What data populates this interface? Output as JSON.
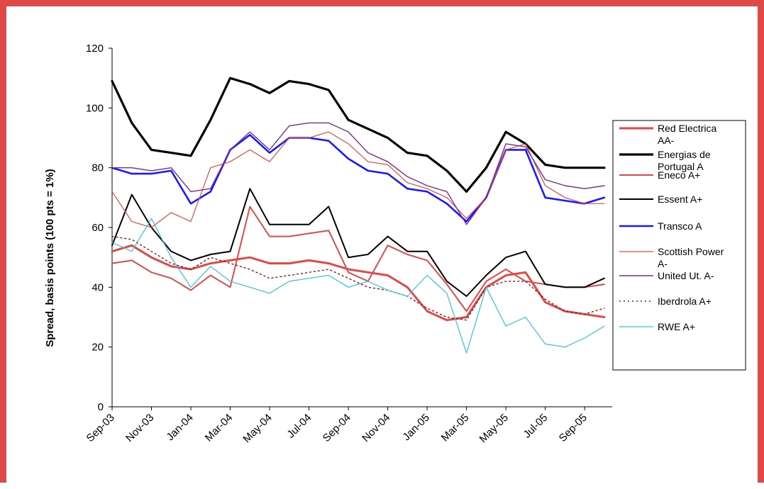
{
  "chart_data": {
    "type": "line",
    "title": "",
    "xlabel": "",
    "ylabel": "Spread, basis points (100 pts = 1%)",
    "ylim": [
      0,
      120
    ],
    "yticks": [
      0,
      20,
      40,
      60,
      80,
      100,
      120
    ],
    "xticks": [
      "Sep-03",
      "Nov-03",
      "Jan-04",
      "Mar-04",
      "May-04",
      "Jul-04",
      "Sep-04",
      "Nov-04",
      "Jan-05",
      "Mar-05",
      "May-05",
      "Jul-05",
      "Sep-05"
    ],
    "x_range": [
      "Sep-03",
      "Oct-05"
    ],
    "grid": false,
    "legend": "right",
    "series": [
      {
        "name": "Red Electrica AA-",
        "color": "#e04a46",
        "width": 3,
        "dash": "",
        "x": [
          "Sep-03",
          "Oct-03",
          "Nov-03",
          "Dec-03",
          "Jan-04",
          "Feb-04",
          "Mar-04",
          "Apr-04",
          "May-04",
          "Jun-04",
          "Jul-04",
          "Aug-04",
          "Sep-04",
          "Oct-04",
          "Nov-04",
          "Dec-04",
          "Jan-05",
          "Feb-05",
          "Mar-05",
          "Apr-05",
          "May-05",
          "Jun-05",
          "Jul-05",
          "Aug-05",
          "Sep-05",
          "Oct-05"
        ],
        "values": [
          52,
          54,
          50,
          47,
          46,
          48,
          49,
          50,
          48,
          48,
          49,
          48,
          46,
          45,
          44,
          40,
          32,
          29,
          30,
          40,
          44,
          45,
          35,
          32,
          31,
          30
        ]
      },
      {
        "name": "Energias de Portugal A",
        "color": "#000000",
        "width": 3.2,
        "dash": "",
        "x": [
          "Sep-03",
          "Oct-03",
          "Nov-03",
          "Dec-03",
          "Jan-04",
          "Feb-04",
          "Mar-04",
          "Apr-04",
          "May-04",
          "Jun-04",
          "Jul-04",
          "Aug-04",
          "Sep-04",
          "Oct-04",
          "Nov-04",
          "Dec-04",
          "Jan-05",
          "Feb-05",
          "Mar-05",
          "Apr-05",
          "May-05",
          "Jun-05",
          "Jul-05",
          "Aug-05",
          "Sep-05",
          "Oct-05"
        ],
        "values": [
          109,
          95,
          86,
          85,
          84,
          96,
          110,
          108,
          105,
          109,
          108,
          106,
          96,
          93,
          90,
          85,
          84,
          79,
          72,
          80,
          92,
          88,
          81,
          80,
          80,
          80
        ]
      },
      {
        "name": "Eneco A+",
        "color": "#e04a46",
        "width": 2,
        "dash": "",
        "x": [
          "Sep-03",
          "Oct-03",
          "Nov-03",
          "Dec-03",
          "Jan-04",
          "Feb-04",
          "Mar-04",
          "Apr-04",
          "May-04",
          "Jun-04",
          "Jul-04",
          "Aug-04",
          "Sep-04",
          "Oct-04",
          "Nov-04",
          "Dec-04",
          "Jan-05",
          "Feb-05",
          "Mar-05",
          "Apr-05",
          "May-05",
          "Jun-05",
          "Jul-05",
          "Aug-05",
          "Sep-05",
          "Oct-05"
        ],
        "values": [
          48,
          49,
          45,
          43,
          39,
          44,
          40,
          67,
          57,
          57,
          58,
          59,
          45,
          42,
          54,
          51,
          49,
          41,
          32,
          42,
          46,
          42,
          41,
          40,
          40,
          41
        ]
      },
      {
        "name": "Essent A+",
        "color": "#000000",
        "width": 2,
        "dash": "",
        "x": [
          "Sep-03",
          "Oct-03",
          "Nov-03",
          "Dec-03",
          "Jan-04",
          "Feb-04",
          "Mar-04",
          "Apr-04",
          "May-04",
          "Jun-04",
          "Jul-04",
          "Aug-04",
          "Sep-04",
          "Oct-04",
          "Nov-04",
          "Dec-04",
          "Jan-05",
          "Feb-05",
          "Mar-05",
          "Apr-05",
          "May-05",
          "Jun-05",
          "Jul-05",
          "Aug-05",
          "Sep-05",
          "Oct-05"
        ],
        "values": [
          54,
          71,
          60,
          52,
          49,
          51,
          52,
          73,
          61,
          61,
          61,
          67,
          50,
          51,
          57,
          52,
          52,
          42,
          37,
          44,
          50,
          52,
          41,
          40,
          40,
          43
        ]
      },
      {
        "name": "Transco A",
        "color": "#1a1aff",
        "width": 2.6,
        "dash": "",
        "x": [
          "Sep-03",
          "Oct-03",
          "Nov-03",
          "Dec-03",
          "Jan-04",
          "Feb-04",
          "Mar-04",
          "Apr-04",
          "May-04",
          "Jun-04",
          "Jul-04",
          "Aug-04",
          "Sep-04",
          "Oct-04",
          "Nov-04",
          "Dec-04",
          "Jan-05",
          "Feb-05",
          "Mar-05",
          "Apr-05",
          "May-05",
          "Jun-05",
          "Jul-05",
          "Aug-05",
          "Sep-05",
          "Oct-05"
        ],
        "values": [
          80,
          78,
          78,
          79,
          68,
          72,
          86,
          91,
          85,
          90,
          90,
          89,
          83,
          79,
          78,
          73,
          72,
          68,
          62,
          70,
          86,
          86,
          70,
          69,
          68,
          70
        ]
      },
      {
        "name": "Scottish Power A-",
        "color": "#e04a46",
        "width": 1.2,
        "dash": "",
        "x": [
          "Sep-03",
          "Oct-03",
          "Nov-03",
          "Dec-03",
          "Jan-04",
          "Feb-04",
          "Mar-04",
          "Apr-04",
          "May-04",
          "Jun-04",
          "Jul-04",
          "Aug-04",
          "Sep-04",
          "Oct-04",
          "Nov-04",
          "Dec-04",
          "Jan-05",
          "Feb-05",
          "Mar-05",
          "Apr-05",
          "May-05",
          "Jun-05",
          "Jul-05",
          "Aug-05",
          "Sep-05",
          "Oct-05"
        ],
        "values": [
          72,
          62,
          60,
          65,
          62,
          80,
          82,
          86,
          82,
          90,
          90,
          92,
          88,
          82,
          81,
          75,
          73,
          70,
          63,
          70,
          86,
          88,
          74,
          70,
          68,
          68
        ]
      },
      {
        "name": "United Ut. A-",
        "color": "#7b2d8e",
        "width": 1.4,
        "dash": "",
        "x": [
          "Sep-03",
          "Oct-03",
          "Nov-03",
          "Dec-03",
          "Jan-04",
          "Feb-04",
          "Mar-04",
          "Apr-04",
          "May-04",
          "Jun-04",
          "Jul-04",
          "Aug-04",
          "Sep-04",
          "Oct-04",
          "Nov-04",
          "Dec-04",
          "Jan-05",
          "Feb-05",
          "Mar-05",
          "Apr-05",
          "May-05",
          "Jun-05",
          "Jul-05",
          "Aug-05",
          "Sep-05",
          "Oct-05"
        ],
        "values": [
          80,
          80,
          79,
          80,
          72,
          73,
          86,
          92,
          86,
          94,
          95,
          95,
          92,
          85,
          82,
          77,
          74,
          72,
          61,
          70,
          88,
          87,
          76,
          74,
          73,
          74
        ]
      },
      {
        "name": "Iberdrola A+",
        "color": "#8b1a1a",
        "width": 1.4,
        "dash": "2,4",
        "x": [
          "Sep-03",
          "Oct-03",
          "Nov-03",
          "Dec-03",
          "Jan-04",
          "Feb-04",
          "Mar-04",
          "Apr-04",
          "May-04",
          "Jun-04",
          "Jul-04",
          "Aug-04",
          "Sep-04",
          "Oct-04",
          "Nov-04",
          "Dec-04",
          "Jan-05",
          "Feb-05",
          "Mar-05",
          "Apr-05",
          "May-05",
          "Jun-05",
          "Jul-05",
          "Aug-05",
          "Sep-05",
          "Oct-05"
        ],
        "values": [
          57,
          56,
          52,
          48,
          46,
          50,
          48,
          46,
          43,
          44,
          45,
          46,
          43,
          40,
          39,
          37,
          33,
          30,
          29,
          40,
          42,
          42,
          36,
          32,
          31,
          33
        ]
      },
      {
        "name": "RWE A+",
        "color": "#33c3e0",
        "width": 1.2,
        "dash": "",
        "x": [
          "Sep-03",
          "Oct-03",
          "Nov-03",
          "Dec-03",
          "Jan-04",
          "Feb-04",
          "Mar-04",
          "Apr-04",
          "May-04",
          "Jun-04",
          "Jul-04",
          "Aug-04",
          "Sep-04",
          "Oct-04",
          "Nov-04",
          "Dec-04",
          "Jan-05",
          "Feb-05",
          "Mar-05",
          "Apr-05",
          "May-05",
          "Jun-05",
          "Jul-05",
          "Aug-05",
          "Sep-05",
          "Oct-05"
        ],
        "values": [
          55,
          52,
          63,
          50,
          40,
          47,
          42,
          40,
          38,
          42,
          43,
          44,
          40,
          42,
          39,
          37,
          44,
          38,
          18,
          40,
          27,
          30,
          21,
          20,
          23,
          27
        ]
      }
    ]
  }
}
